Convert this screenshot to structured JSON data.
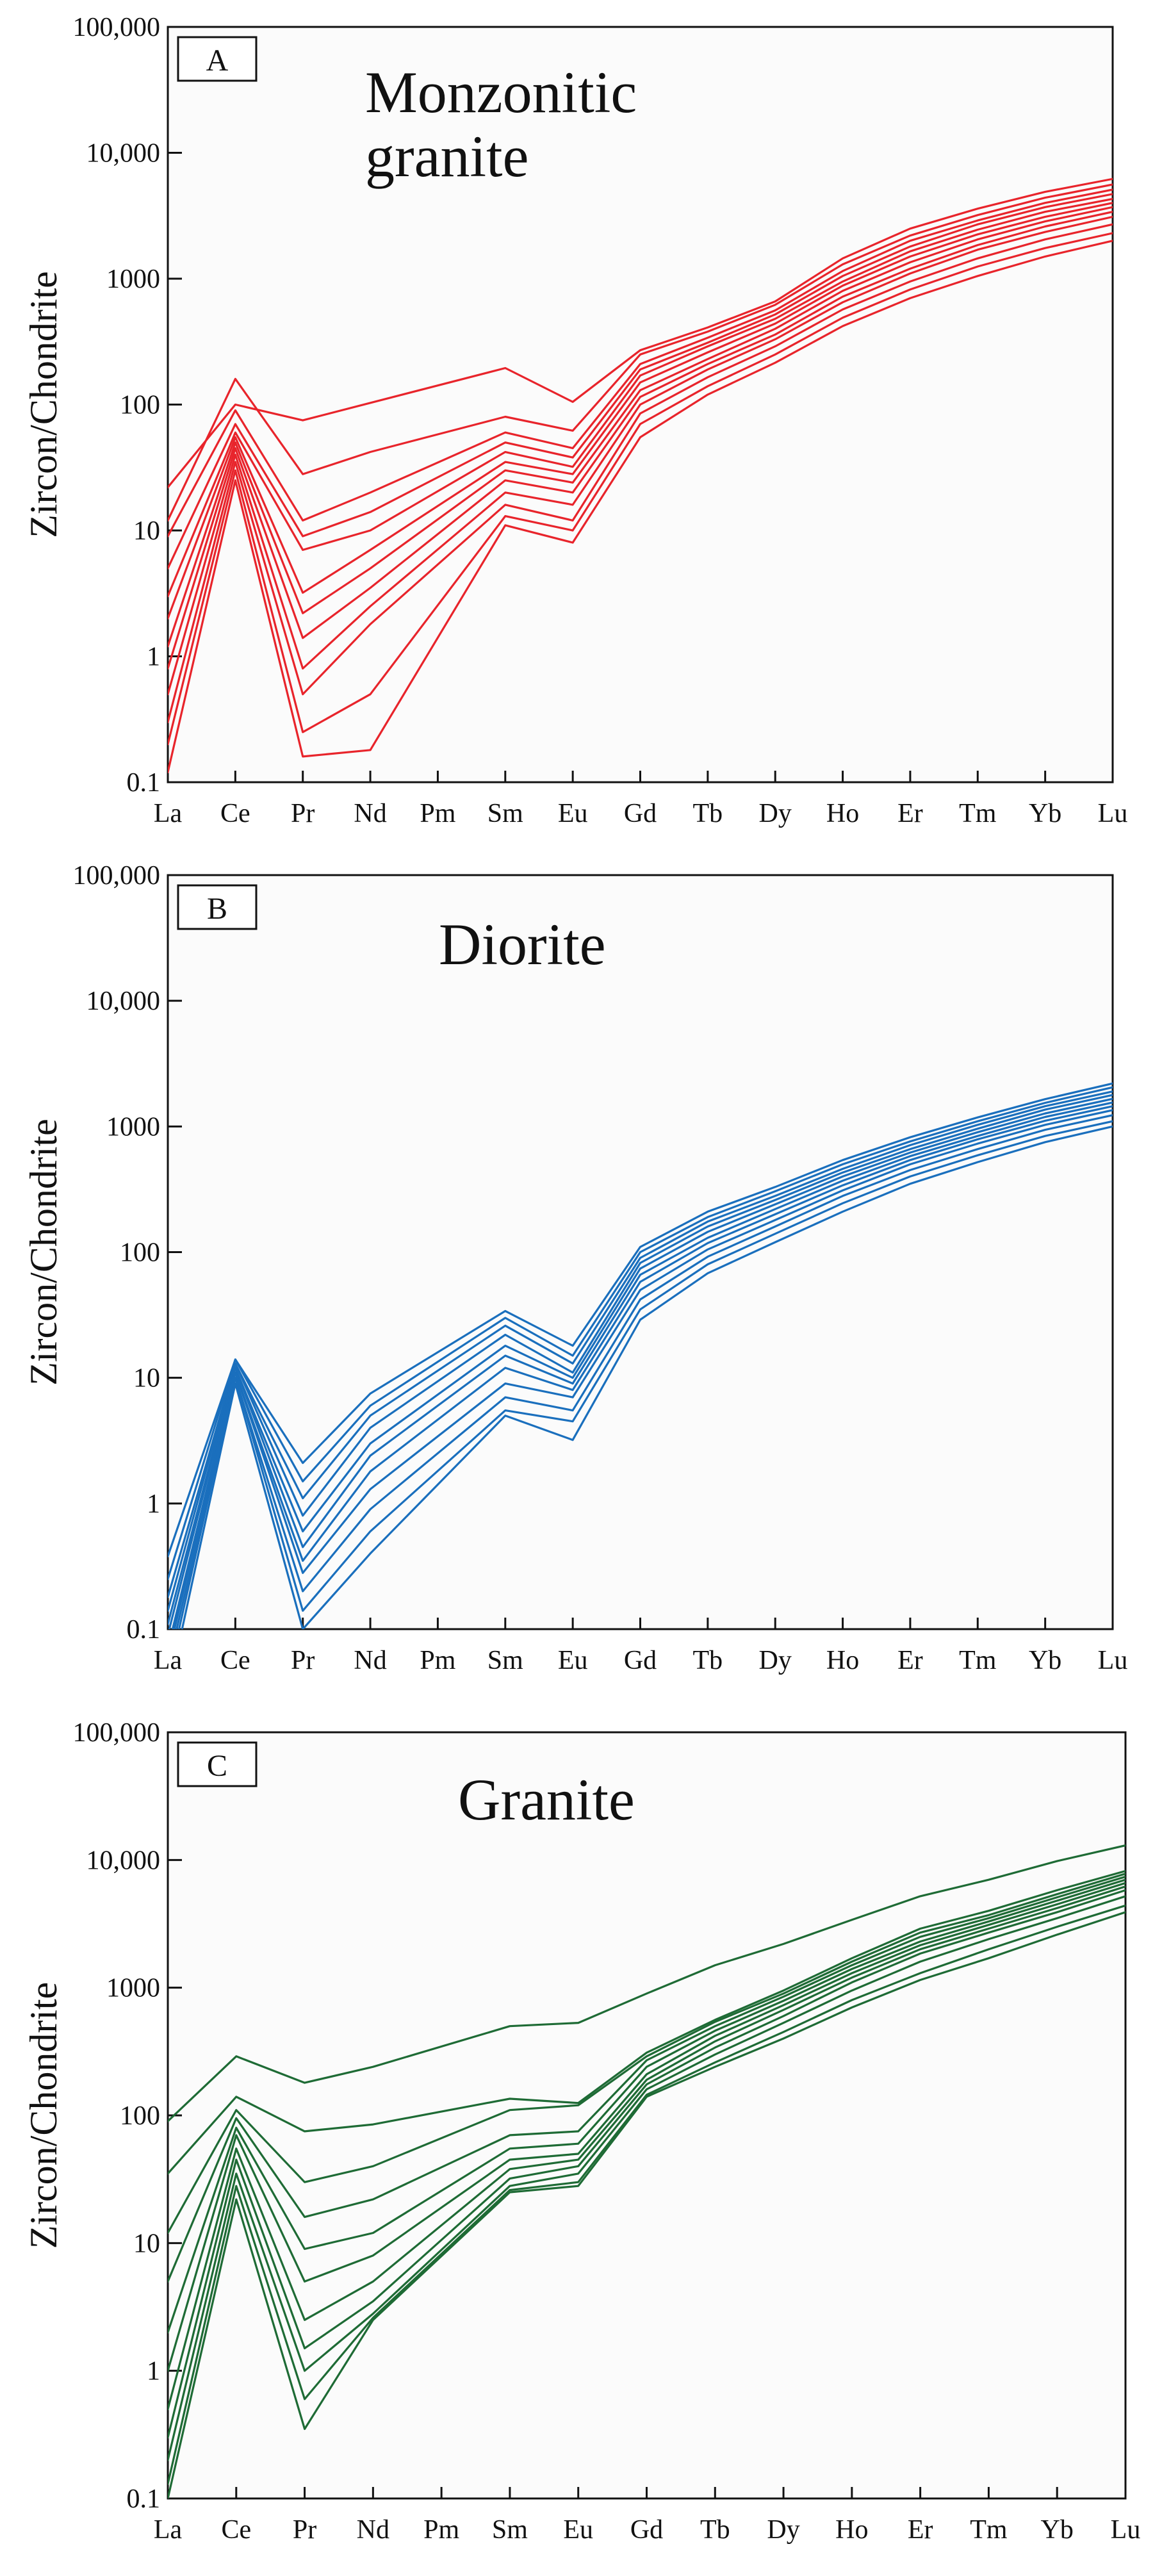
{
  "figure": {
    "ylabel": "Zircon/Chondrite",
    "y_tick_labels": [
      "0.1",
      "1",
      "10",
      "100",
      "1000",
      "10,000",
      "100,000"
    ],
    "elements": [
      "La",
      "Ce",
      "Pr",
      "Nd",
      "Pm",
      "Sm",
      "Eu",
      "Gd",
      "Tb",
      "Dy",
      "Ho",
      "Er",
      "Tm",
      "Yb",
      "Lu"
    ]
  },
  "chart_data": [
    {
      "panel": "A",
      "type": "line",
      "title_lines": [
        "Monzonitic",
        "granite"
      ],
      "color": "#e8242b",
      "yscale": "log",
      "ylim": [
        0.1,
        100000
      ],
      "ylabel": "Zircon/Chondrite",
      "categories": [
        "La",
        "Ce",
        "Pr",
        "Nd",
        "Pm",
        "Sm",
        "Eu",
        "Gd",
        "Tb",
        "Dy",
        "Ho",
        "Er",
        "Tm",
        "Yb",
        "Lu"
      ],
      "series": [
        {
          "values": [
            22,
            100,
            75,
            null,
            null,
            195,
            105,
            270,
            410,
            660,
            1450,
            2500,
            3600,
            4900,
            6200
          ]
        },
        {
          "values": [
            12,
            160,
            28,
            42,
            null,
            80,
            62,
            250,
            380,
            620,
            1300,
            2200,
            3200,
            4400,
            5600
          ]
        },
        {
          "values": [
            9,
            90,
            12,
            20,
            null,
            60,
            45,
            210,
            340,
            560,
            1150,
            2000,
            2900,
            4000,
            5100
          ]
        },
        {
          "values": [
            5,
            70,
            9,
            14,
            null,
            50,
            38,
            190,
            310,
            520,
            1050,
            1800,
            2700,
            3700,
            4700
          ]
        },
        {
          "values": [
            3,
            60,
            7,
            10,
            null,
            42,
            32,
            170,
            290,
            480,
            950,
            1650,
            2450,
            3400,
            4300
          ]
        },
        {
          "values": [
            2,
            55,
            3.2,
            7,
            null,
            35,
            28,
            150,
            260,
            440,
            880,
            1500,
            2250,
            3100,
            4000
          ]
        },
        {
          "values": [
            1.2,
            50,
            2.2,
            5,
            null,
            30,
            24,
            130,
            230,
            400,
            800,
            1350,
            2050,
            2850,
            3700
          ]
        },
        {
          "values": [
            0.8,
            45,
            1.4,
            3.5,
            null,
            25,
            20,
            115,
            210,
            360,
            720,
            1200,
            1850,
            2600,
            3400
          ]
        },
        {
          "values": [
            0.5,
            40,
            0.8,
            2.5,
            null,
            20,
            16,
            100,
            190,
            330,
            650,
            1100,
            1700,
            2350,
            3100
          ]
        },
        {
          "values": [
            0.3,
            35,
            0.5,
            1.8,
            null,
            16,
            12,
            85,
            165,
            290,
            570,
            950,
            1450,
            2050,
            2700
          ]
        },
        {
          "values": [
            0.2,
            30,
            0.25,
            0.5,
            null,
            13,
            10,
            70,
            140,
            250,
            490,
            820,
            1250,
            1750,
            2300
          ]
        },
        {
          "values": [
            0.12,
            25,
            0.16,
            0.18,
            null,
            11,
            8,
            55,
            120,
            215,
            420,
            700,
            1050,
            1500,
            2000
          ]
        }
      ]
    },
    {
      "panel": "B",
      "type": "line",
      "title_lines": [
        "Diorite"
      ],
      "color": "#1a6fbd",
      "yscale": "log",
      "ylim": [
        0.1,
        100000
      ],
      "ylabel": "Zircon/Chondrite",
      "categories": [
        "La",
        "Ce",
        "Pr",
        "Nd",
        "Pm",
        "Sm",
        "Eu",
        "Gd",
        "Tb",
        "Dy",
        "Ho",
        "Er",
        "Tm",
        "Yb",
        "Lu"
      ],
      "series": [
        {
          "values": [
            0.38,
            14,
            2.1,
            7.5,
            null,
            34,
            18,
            110,
            210,
            330,
            540,
            820,
            1180,
            1650,
            2200
          ]
        },
        {
          "values": [
            0.25,
            14,
            1.5,
            6,
            null,
            30,
            15,
            100,
            190,
            305,
            500,
            760,
            1100,
            1540,
            2050
          ]
        },
        {
          "values": [
            0.18,
            13,
            1.1,
            5,
            null,
            26,
            13,
            90,
            175,
            280,
            460,
            710,
            1030,
            1450,
            1900
          ]
        },
        {
          "values": [
            0.14,
            13,
            0.8,
            4,
            null,
            22,
            11,
            82,
            160,
            260,
            430,
            660,
            960,
            1360,
            1780
          ]
        },
        {
          "values": [
            0.11,
            12,
            0.6,
            3,
            null,
            18,
            10,
            74,
            145,
            240,
            400,
            620,
            900,
            1270,
            1660
          ]
        },
        {
          "values": [
            0.09,
            12,
            0.45,
            2.4,
            null,
            15,
            9,
            66,
            130,
            220,
            370,
            580,
            840,
            1190,
            1550
          ]
        },
        {
          "values": [
            0.07,
            11,
            0.35,
            1.8,
            null,
            12,
            8,
            58,
            118,
            200,
            340,
            540,
            790,
            1110,
            1450
          ]
        },
        {
          "values": [
            0.06,
            11,
            0.28,
            1.3,
            null,
            9,
            7,
            50,
            105,
            180,
            310,
            500,
            730,
            1030,
            1350
          ]
        },
        {
          "values": [
            0.05,
            10,
            0.2,
            0.9,
            null,
            7,
            5.5,
            42,
            92,
            160,
            280,
            450,
            660,
            940,
            1230
          ]
        },
        {
          "values": [
            0.04,
            10,
            0.14,
            0.6,
            null,
            5.5,
            4.5,
            35,
            80,
            140,
            245,
            400,
            590,
            840,
            1100
          ]
        },
        {
          "values": [
            0.03,
            9,
            0.1,
            0.4,
            null,
            5,
            3.2,
            29,
            68,
            120,
            210,
            350,
            520,
            750,
            1000
          ]
        }
      ]
    },
    {
      "panel": "C",
      "type": "line",
      "title_lines": [
        "Granite"
      ],
      "color": "#1e6b35",
      "yscale": "log",
      "ylim": [
        0.1,
        100000
      ],
      "ylabel": "Zircon/Chondrite",
      "categories": [
        "La",
        "Ce",
        "Pr",
        "Nd",
        "Pm",
        "Sm",
        "Eu",
        "Gd",
        "Tb",
        "Dy",
        "Ho",
        "Er",
        "Tm",
        "Yb",
        "Lu"
      ],
      "series": [
        {
          "values": [
            90,
            290,
            180,
            240,
            null,
            500,
            530,
            900,
            1500,
            2200,
            3400,
            5200,
            7000,
            9800,
            13000
          ]
        },
        {
          "values": [
            35,
            140,
            75,
            85,
            null,
            135,
            125,
            310,
            560,
            950,
            1700,
            2900,
            4000,
            5800,
            8200
          ]
        },
        {
          "values": [
            12,
            110,
            30,
            40,
            null,
            110,
            120,
            290,
            540,
            900,
            1600,
            2700,
            3700,
            5400,
            7800
          ]
        },
        {
          "values": [
            5,
            95,
            16,
            22,
            null,
            70,
            75,
            270,
            500,
            850,
            1500,
            2500,
            3500,
            5100,
            7400
          ]
        },
        {
          "values": [
            2,
            80,
            9,
            12,
            null,
            55,
            60,
            240,
            460,
            790,
            1400,
            2300,
            3300,
            4800,
            7000
          ]
        },
        {
          "values": [
            1,
            70,
            5,
            8,
            null,
            45,
            50,
            210,
            420,
            730,
            1300,
            2150,
            3100,
            4500,
            6600
          ]
        },
        {
          "values": [
            0.5,
            55,
            2.5,
            5,
            null,
            38,
            45,
            190,
            380,
            670,
            1200,
            2000,
            2900,
            4200,
            6200
          ]
        },
        {
          "values": [
            0.3,
            45,
            1.5,
            3.5,
            null,
            32,
            40,
            175,
            340,
            600,
            1100,
            1850,
            2700,
            3900,
            5800
          ]
        },
        {
          "values": [
            0.2,
            35,
            1,
            2.8,
            null,
            28,
            35,
            160,
            300,
            530,
            950,
            1600,
            2400,
            3500,
            5200
          ]
        },
        {
          "values": [
            0.13,
            28,
            0.6,
            2.6,
            null,
            26,
            30,
            145,
            260,
            450,
            800,
            1300,
            2000,
            3000,
            4400
          ]
        },
        {
          "values": [
            0.1,
            22,
            0.35,
            2.5,
            null,
            25,
            28,
            140,
            240,
            400,
            700,
            1150,
            1700,
            2600,
            3900
          ]
        }
      ]
    }
  ]
}
